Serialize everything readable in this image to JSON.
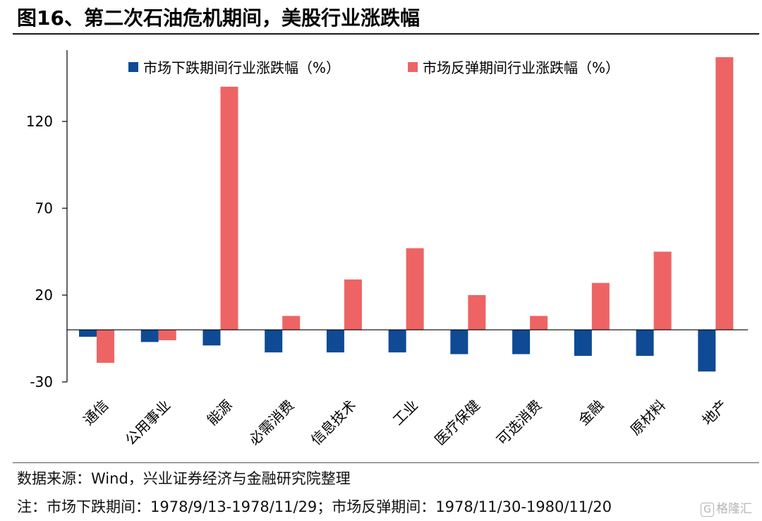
{
  "title": "图16、第二次石油危机期间，美股行业涨跌幅",
  "source_text": "数据来源：Wind，兴业证券经济与金融研究院整理",
  "note_text": "注：市场下跌期间：1978/9/13-1978/11/29；市场反弹期间：1978/11/30-1980/11/20",
  "watermark": {
    "logo_glyph": "G",
    "text": "格隆汇"
  },
  "chart_data": {
    "type": "bar",
    "categories": [
      "通信",
      "公用事业",
      "能源",
      "必需消费",
      "信息技术",
      "工业",
      "医疗保健",
      "可选消费",
      "金融",
      "原材料",
      "地产"
    ],
    "series": [
      {
        "name": "市场下跌期间行业涨跌幅（%）",
        "color": "#0f4a94",
        "values": [
          -4,
          -7,
          -9,
          -13,
          -13,
          -13,
          -14,
          -14,
          -15,
          -15,
          -24
        ]
      },
      {
        "name": "市场反弹期间行业涨跌幅（%）",
        "color": "#ee6464",
        "values": [
          -19,
          -6,
          140,
          8,
          29,
          47,
          20,
          8,
          27,
          45,
          157
        ]
      }
    ],
    "yticks": [
      -30,
      20,
      70,
      120
    ],
    "ylim": [
      -30,
      157
    ],
    "xlabel": "",
    "ylabel": "",
    "legend_position": "top"
  }
}
